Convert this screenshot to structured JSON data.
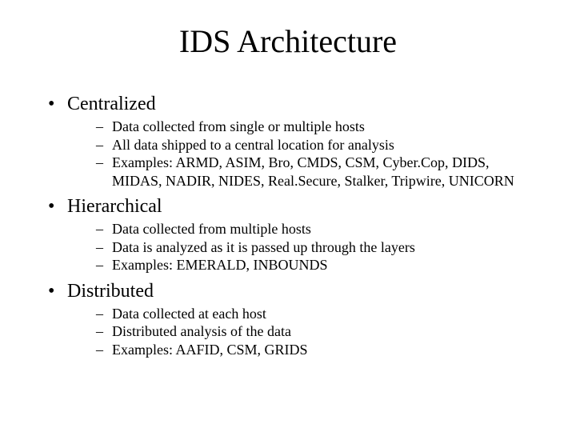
{
  "title": "IDS Architecture",
  "title_fontsize": 40,
  "body_l1_fontsize": 24,
  "body_l2_fontsize": 18,
  "font_family": "Times New Roman",
  "background_color": "#ffffff",
  "text_color": "#000000",
  "slide_width": 720,
  "slide_height": 540,
  "sections": [
    {
      "heading": "Centralized",
      "items": [
        "Data collected from single or multiple hosts",
        "All data shipped to a central location for analysis",
        "Examples: ARMD, ASIM, Bro, CMDS, CSM, Cyber.Cop, DIDS, MIDAS, NADIR, NIDES, Real.Secure, Stalker, Tripwire, UNICORN"
      ]
    },
    {
      "heading": "Hierarchical",
      "items": [
        "Data collected from multiple hosts",
        "Data is analyzed as it is passed up through the layers",
        "Examples: EMERALD, INBOUNDS"
      ]
    },
    {
      "heading": "Distributed",
      "items": [
        "Data collected at each host",
        "Distributed analysis of the data",
        "Examples: AAFID, CSM, GRIDS"
      ]
    }
  ]
}
